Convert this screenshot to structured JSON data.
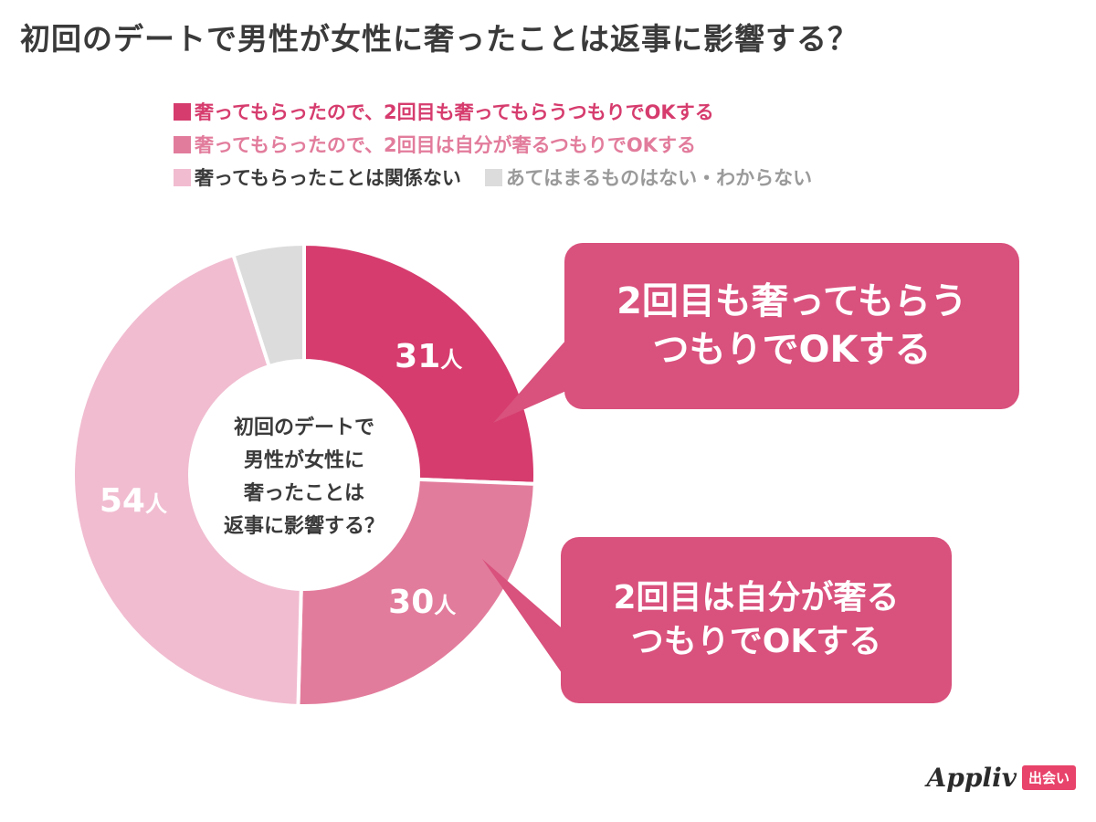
{
  "title": "初回のデートで男性が女性に奢ったことは返事に影響する？",
  "colors": {
    "callout_fill": "#d9517d",
    "title_text": "#3a3a3a"
  },
  "chart_data": {
    "type": "pie",
    "variant": "donut",
    "start_angle_deg": 0,
    "direction": "clockwise",
    "center_text": [
      "初回のデートで",
      "男性が女性に",
      "奢ったことは",
      "返事に影響する？"
    ],
    "unit": "人",
    "series": [
      {
        "name": "奢ってもらったので、2回目も奢ってもらうつもりでOKする",
        "value": 31,
        "color": "#d63c6e",
        "legend_text_color": "#d63c6e",
        "label": "31人"
      },
      {
        "name": "奢ってもらったので、2回目は自分が奢るつもりでOKする",
        "value": 30,
        "color": "#e27c9c",
        "legend_text_color": "#e27c9c",
        "label": "30人"
      },
      {
        "name": "奢ってもらったことは関係ない",
        "value": 54,
        "color": "#f1bcd0",
        "legend_text_color": "#3a3a3a",
        "label": "54人"
      },
      {
        "name": "あてはまるものはない・わからない",
        "value": 6,
        "color": "#dcdcdc",
        "legend_text_color": "#9a9a9a",
        "label": ""
      }
    ]
  },
  "callouts": [
    {
      "text": "2回目も奢ってもらう\nつもりでOKする",
      "color": "#d9517d"
    },
    {
      "text": "2回目は自分が奢る\nつもりでOKする",
      "color": "#d9517d"
    }
  ],
  "logo": {
    "word": "Appliv",
    "tag": "出会い",
    "tag_color": "#e8436a"
  }
}
